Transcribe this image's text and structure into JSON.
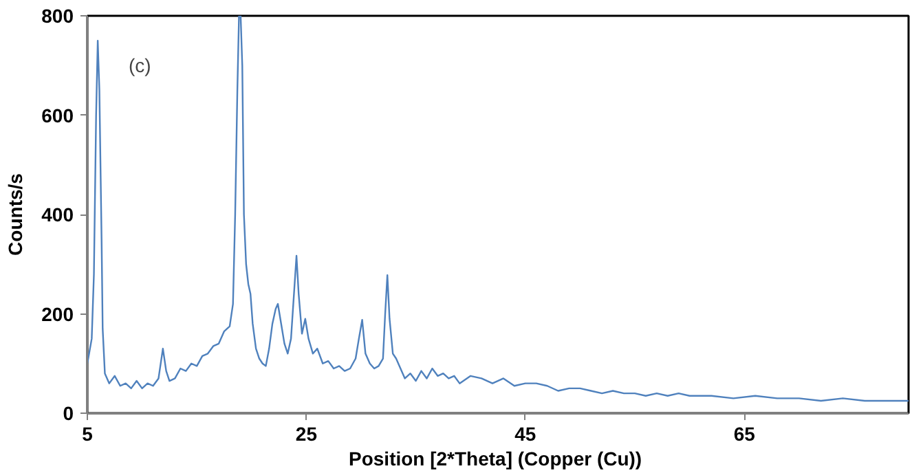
{
  "chart_data": {
    "type": "line",
    "xlabel": "Position [2*Theta] (Copper  (Cu))",
    "ylabel": "Counts/s",
    "annotations": [
      "(c)"
    ],
    "xlim": [
      5,
      80
    ],
    "xticks": [
      5,
      25,
      45,
      65
    ],
    "ylim": [
      0,
      800
    ],
    "yticks": [
      0,
      200,
      400,
      600,
      800
    ],
    "grid": false,
    "marker": "none",
    "line_style": "solid",
    "series": [
      {
        "color": "#4f81bd",
        "x": [
          5.0,
          5.2,
          5.4,
          5.6,
          5.8,
          5.95,
          6.1,
          6.3,
          6.4,
          6.6,
          7.0,
          7.5,
          8.0,
          8.5,
          9.0,
          9.5,
          10.0,
          10.5,
          11.0,
          11.5,
          11.9,
          12.2,
          12.5,
          13.0,
          13.5,
          14.0,
          14.5,
          15.0,
          15.5,
          16.0,
          16.5,
          17.0,
          17.5,
          18.0,
          18.3,
          18.5,
          18.7,
          18.85,
          19.0,
          19.15,
          19.3,
          19.5,
          19.7,
          19.9,
          20.1,
          20.4,
          20.7,
          21.0,
          21.3,
          21.6,
          21.9,
          22.2,
          22.4,
          22.7,
          23.0,
          23.3,
          23.6,
          23.9,
          24.1,
          24.3,
          24.6,
          24.9,
          25.2,
          25.6,
          26.0,
          26.5,
          27.0,
          27.5,
          28.0,
          28.5,
          29.0,
          29.5,
          29.8,
          30.1,
          30.4,
          30.8,
          31.2,
          31.6,
          32.0,
          32.2,
          32.4,
          32.6,
          32.9,
          33.2,
          33.6,
          34.0,
          34.5,
          35.0,
          35.5,
          36.0,
          36.5,
          37.0,
          37.5,
          38.0,
          38.5,
          39,
          40,
          41,
          42,
          43,
          44,
          45,
          46,
          47,
          48,
          49,
          50,
          51,
          52,
          53,
          54,
          55,
          56,
          57,
          58,
          59,
          60,
          62,
          64,
          66,
          68,
          70,
          72,
          74,
          76,
          78,
          80
        ],
        "values": [
          100,
          125,
          150,
          280,
          600,
          750,
          650,
          350,
          170,
          80,
          60,
          75,
          55,
          60,
          50,
          65,
          50,
          60,
          55,
          70,
          130,
          85,
          65,
          70,
          90,
          85,
          100,
          95,
          115,
          120,
          135,
          140,
          165,
          175,
          220,
          400,
          650,
          800,
          800,
          700,
          400,
          300,
          260,
          240,
          180,
          130,
          110,
          100,
          95,
          130,
          180,
          210,
          220,
          180,
          140,
          120,
          150,
          250,
          317,
          240,
          160,
          190,
          150,
          120,
          130,
          100,
          105,
          90,
          95,
          85,
          90,
          110,
          150,
          188,
          120,
          100,
          90,
          95,
          110,
          200,
          278,
          190,
          120,
          110,
          90,
          70,
          80,
          65,
          85,
          70,
          90,
          75,
          80,
          70,
          75,
          60,
          75,
          70,
          60,
          70,
          55,
          60,
          60,
          55,
          45,
          50,
          50,
          45,
          40,
          45,
          40,
          40,
          35,
          40,
          35,
          40,
          35,
          35,
          30,
          35,
          30,
          30,
          25,
          30,
          25,
          25,
          25
        ]
      }
    ]
  }
}
